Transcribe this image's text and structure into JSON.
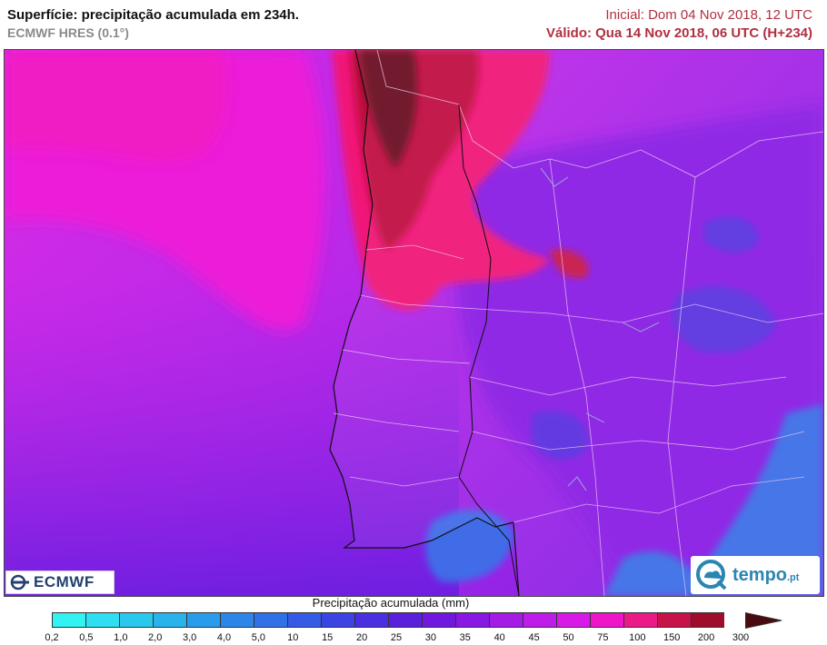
{
  "header": {
    "title": "Superfície: precipitação acumulada em 234h.",
    "model": "ECMWF HRES (0.1°)",
    "initial": "Inicial: Dom 04 Nov 2018, 12 UTC",
    "valid": "Válido: Qua 14 Nov 2018, 06 UTC (H+234)"
  },
  "logos": {
    "ecmwf": "ECMWF",
    "tempo": "tempo",
    "tempo_suffix": ".pt"
  },
  "legend": {
    "title": "Precipitação acumulada (mm)",
    "ticks": [
      "0,2",
      "0,5",
      "1,0",
      "2,0",
      "3,0",
      "4,0",
      "5,0",
      "10",
      "15",
      "20",
      "25",
      "30",
      "35",
      "40",
      "45",
      "50",
      "75",
      "100",
      "150",
      "200",
      "300"
    ],
    "colors": [
      "#33f2f2",
      "#2fdef0",
      "#2bc8ee",
      "#29b2ec",
      "#2a9cec",
      "#2c86ea",
      "#3070e8",
      "#345ae6",
      "#3d44e4",
      "#4a30e0",
      "#5b20dc",
      "#7018e0",
      "#8a18e4",
      "#a41ce6",
      "#be1ce8",
      "#d81ae8",
      "#ee16c8",
      "#ec1a86",
      "#c8124a",
      "#a00c2c"
    ]
  },
  "map": {
    "region": "Portugal / Península Ibérica",
    "ocean_color": "#c428e0",
    "max_color": "#5a0a18"
  }
}
